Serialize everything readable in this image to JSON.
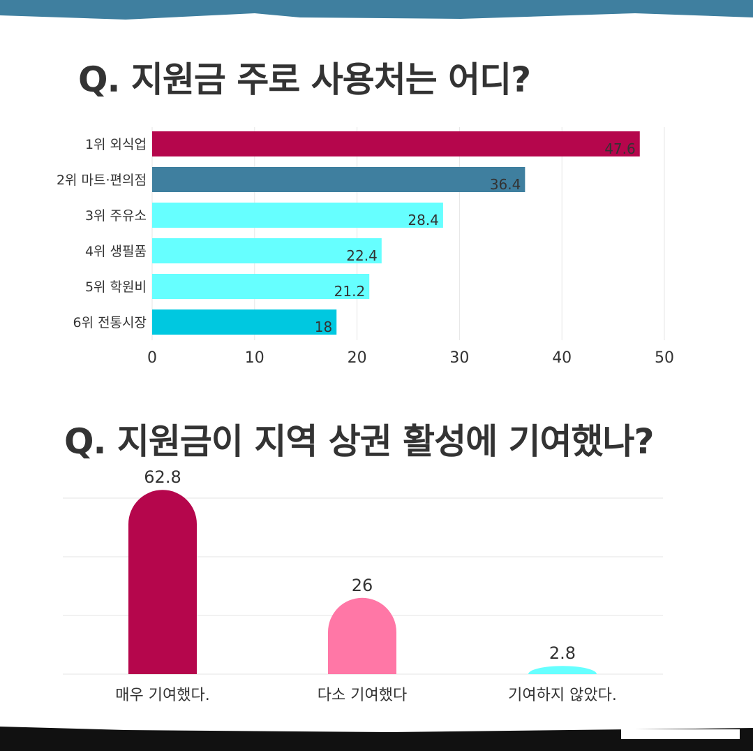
{
  "colors": {
    "header": "#3f7f9f",
    "footer": "#111111"
  },
  "chart_data": [
    {
      "type": "bar",
      "orientation": "horizontal",
      "title": "Q. 지원금 주로 사용처는 어디?",
      "categories": [
        "1위 외식업",
        "2위 마트·편의점",
        "3위 주유소",
        "4위 생필품",
        "5위 학원비",
        "6위 전통시장"
      ],
      "values": [
        47.6,
        36.4,
        28.4,
        22.4,
        21.2,
        18
      ],
      "value_labels": [
        "47.6",
        "36.4",
        "28.4",
        "22.4",
        "21.2",
        "18"
      ],
      "colors": [
        "#b5064c",
        "#3f7f9f",
        "#66ffff",
        "#66ffff",
        "#66ffff",
        "#00c8e0"
      ],
      "xlim": [
        0,
        50
      ],
      "xticks": [
        "0",
        "10",
        "20",
        "30",
        "40",
        "50"
      ],
      "grid": true
    },
    {
      "type": "bar",
      "orientation": "vertical",
      "title": "Q. 지원금이 지역 상권 활성에 기여했나?",
      "categories": [
        "매우 기여했다.",
        "다소 기여했다",
        "기여하지 않았다."
      ],
      "values": [
        62.8,
        26,
        2.8
      ],
      "value_labels": [
        "62.8",
        "26",
        "2.8"
      ],
      "colors": [
        "#b5064c",
        "#ff77a6",
        "#66ffff"
      ],
      "ylim": [
        0,
        60
      ],
      "gridlines": [
        0,
        20,
        40,
        60
      ],
      "grid": true
    }
  ]
}
